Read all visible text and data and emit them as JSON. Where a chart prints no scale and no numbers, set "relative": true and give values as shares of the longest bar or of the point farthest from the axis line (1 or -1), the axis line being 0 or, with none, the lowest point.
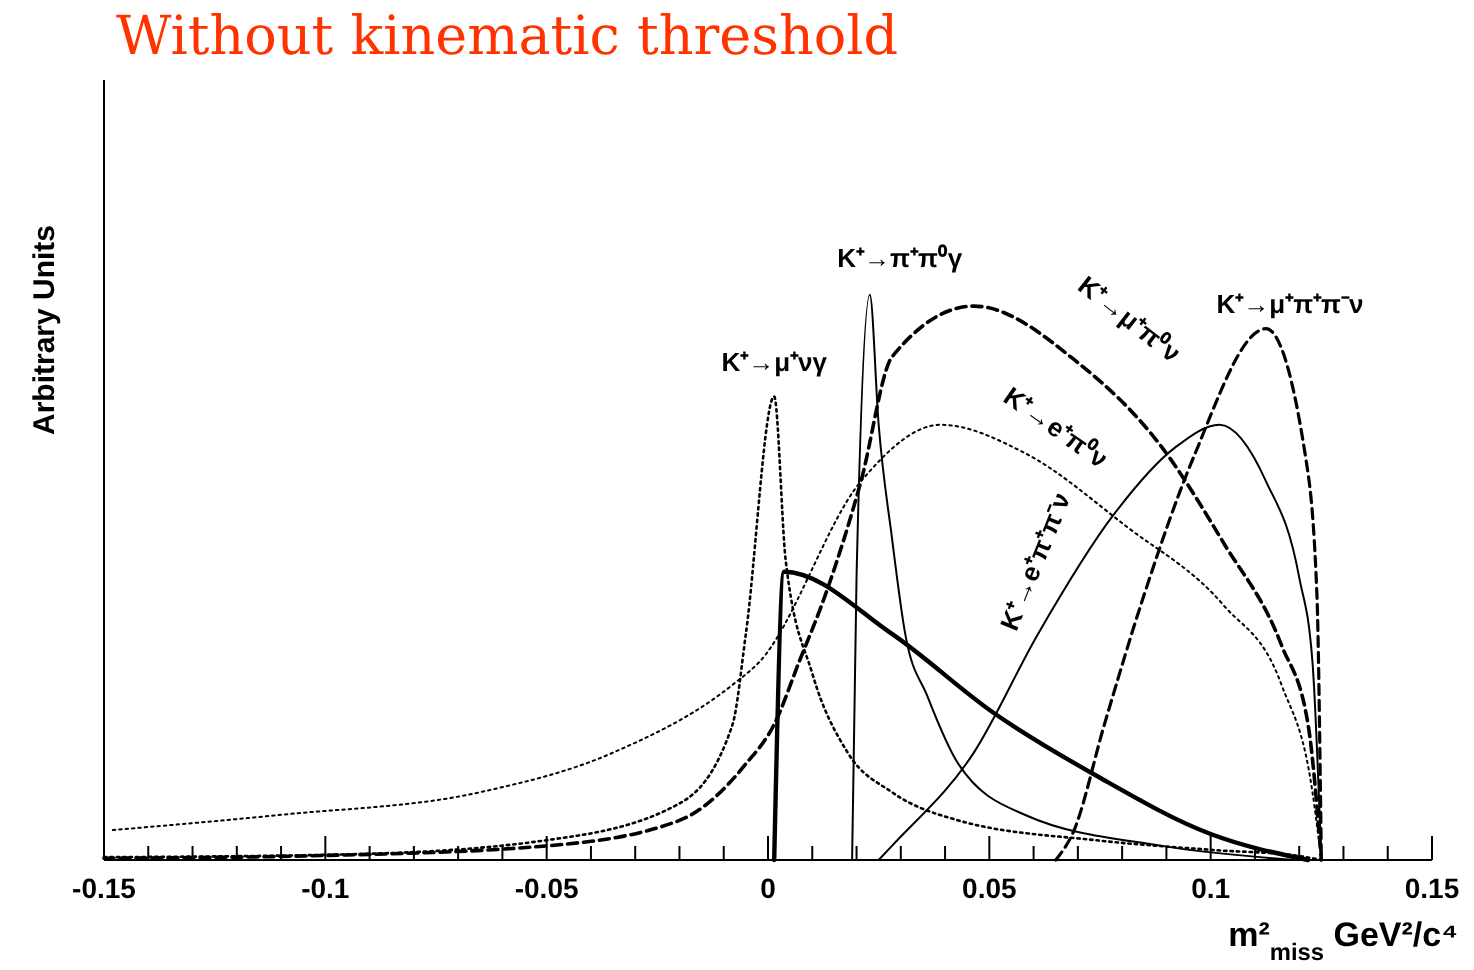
{
  "chart_data": {
    "type": "line",
    "title": "Without kinematic threshold",
    "xlabel": "m²$_{miss}$ GeV²/c⁴",
    "ylabel": "Arbitrary Units",
    "relative": true,
    "grid": false,
    "marker": "none",
    "xlim": [
      -0.15,
      0.15
    ],
    "xticks": [
      -0.15,
      {
        "value": -0.14,
        "label": null
      },
      {
        "value": -0.13,
        "label": null
      },
      {
        "value": -0.12,
        "label": null
      },
      {
        "value": -0.11,
        "label": null
      },
      -0.1,
      {
        "value": -0.09,
        "label": null
      },
      {
        "value": -0.08,
        "label": null
      },
      {
        "value": -0.07,
        "label": null
      },
      {
        "value": -0.06,
        "label": null
      },
      -0.05,
      {
        "value": -0.04,
        "label": null
      },
      {
        "value": -0.03,
        "label": null
      },
      {
        "value": -0.02,
        "label": null
      },
      {
        "value": -0.01,
        "label": null
      },
      0,
      {
        "value": 0.01,
        "label": null
      },
      {
        "value": 0.02,
        "label": null
      },
      {
        "value": 0.03,
        "label": null
      },
      {
        "value": 0.04,
        "label": null
      },
      0.05,
      {
        "value": 0.06,
        "label": null
      },
      {
        "value": 0.07,
        "label": null
      },
      {
        "value": 0.08,
        "label": null
      },
      {
        "value": 0.09,
        "label": null
      },
      0.1,
      {
        "value": 0.11,
        "label": null
      },
      {
        "value": 0.12,
        "label": null
      },
      {
        "value": 0.13,
        "label": null
      },
      {
        "value": 0.14,
        "label": null
      },
      0.15
    ],
    "series": [
      {
        "name": "K⁺→μ⁺νγ",
        "color": "#000000",
        "line_style": "dotted",
        "x": [
          -0.15,
          -0.095,
          -0.05,
          -0.02,
          -0.008,
          -0.005,
          0.0014,
          0.004,
          0.01,
          0.018,
          0.028,
          0.043,
          0.074,
          0.1,
          0.12,
          0.125
        ],
        "values": [
          0.005,
          0.01,
          0.035,
          0.1,
          0.24,
          0.4,
          0.82,
          0.53,
          0.33,
          0.19,
          0.12,
          0.07,
          0.035,
          0.018,
          0.007,
          0
        ]
      },
      {
        "name": "K⁺→π⁺π⁰γ",
        "color": "#000000",
        "line_style": "solid",
        "x": [
          0.019,
          0.02,
          0.023,
          0.025,
          0.028,
          0.031,
          0.036,
          0.043,
          0.058,
          0.089,
          0.119
        ],
        "values": [
          0,
          0.5,
          1.0,
          0.77,
          0.57,
          0.4,
          0.29,
          0.17,
          0.08,
          0.025,
          0
        ]
      },
      {
        "name": "K⁺→μ⁺π⁰ν",
        "color": "#000000",
        "line_style": "dashed",
        "x": [
          -0.15,
          -0.1,
          -0.05,
          -0.02,
          -0.005,
          0.0014,
          0.007,
          0.013,
          0.021,
          0.028,
          0.0465,
          0.07,
          0.089,
          0.103,
          0.116,
          0.122,
          0.125
        ],
        "values": [
          0.003,
          0.008,
          0.025,
          0.07,
          0.17,
          0.24,
          0.35,
          0.47,
          0.67,
          0.89,
          0.98,
          0.88,
          0.73,
          0.56,
          0.38,
          0.24,
          0
        ]
      },
      {
        "name": "K⁺→e⁺π⁰ν",
        "color": "#000000",
        "line_style": "dotted",
        "x": [
          -0.148,
          -0.11,
          -0.065,
          -0.035,
          -0.008,
          -0.002,
          0.021,
          0.039,
          0.058,
          0.081,
          0.103,
          0.116,
          0.123,
          0.125
        ],
        "values": [
          0.053,
          0.08,
          0.12,
          0.19,
          0.31,
          0.35,
          0.67,
          0.77,
          0.72,
          0.59,
          0.45,
          0.31,
          0.12,
          0
        ]
      },
      {
        "name": "K⁺→μ⁺π⁺π⁻ν",
        "color": "#000000",
        "line_style": "dashed",
        "x": [
          0.065,
          0.069,
          0.076,
          0.085,
          0.096,
          0.1125,
          0.1215,
          0.124,
          0.125
        ],
        "values": [
          0,
          0.05,
          0.24,
          0.47,
          0.71,
          0.94,
          0.71,
          0.47,
          0
        ]
      },
      {
        "name": "K⁺→e⁺π⁺π⁻ν",
        "color": "#000000",
        "line_style": "solid",
        "x": [
          0.025,
          0.028,
          0.0465,
          0.061,
          0.078,
          0.092,
          0.102,
          0.1125,
          0.12,
          0.123,
          0.125
        ],
        "values": [
          0,
          0.025,
          0.19,
          0.4,
          0.61,
          0.73,
          0.77,
          0.67,
          0.5,
          0.35,
          0
        ]
      },
      {
        "color": "#000000",
        "line_style": "solid",
        "x": [
          0.0014,
          0.0036,
          0.028,
          0.051,
          0.074,
          0.1,
          0.122
        ],
        "values": [
          0,
          0.51,
          0.4,
          0.26,
          0.15,
          0.046,
          0
        ]
      }
    ]
  }
}
